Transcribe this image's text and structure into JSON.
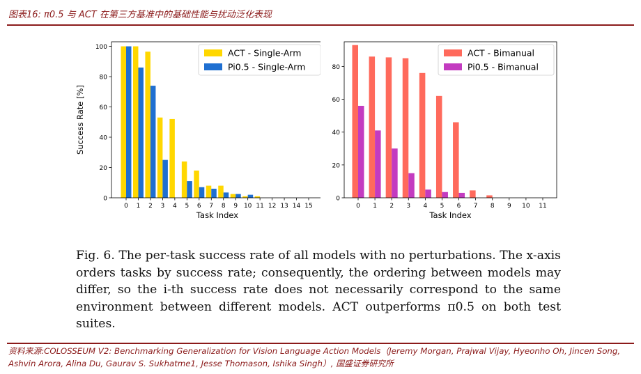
{
  "header": {
    "title": "图表16:  π0.5 与 ACT 在第三方基准中的基础性能与扰动泛化表现"
  },
  "caption": {
    "text": "Fig. 6.  The per-task success rate of all models with no perturbations. The x-axis orders tasks by success rate; consequently, the ordering between models may differ, so the i-th success rate does not necessarily correspond to the same environment between different models. ACT outperforms π0.5 on both test suites."
  },
  "source": {
    "text": "资料来源:COLOSSEUM V2: Benchmarking Generalization for Vision Language Action Models（Jeremy Morgan,   Prajwal Vijay,   Hyeonho Oh, Jincen Song,   Ashvin Arora,   Alina Du,   Gaurav S. Sukhatme1,   Jesse Thomason,   Ishika Singh）, 国盛证券研究所"
  },
  "chart_data": [
    {
      "type": "bar",
      "title": "",
      "xlabel": "Task Index",
      "ylabel": "Success Rate [%]",
      "categories": [
        "0",
        "1",
        "2",
        "3",
        "4",
        "5",
        "6",
        "7",
        "8",
        "9",
        "10",
        "11",
        "12",
        "13",
        "14",
        "15"
      ],
      "ylim": [
        0,
        103
      ],
      "yticks": [
        0,
        20,
        40,
        60,
        80,
        100
      ],
      "legend": "top-right",
      "grid": false,
      "series": [
        {
          "name": "ACT - Single-Arm",
          "color": "#ffd700",
          "values": [
            100,
            100,
            96.5,
            53,
            52,
            24,
            18,
            8,
            8,
            2.5,
            1,
            1,
            0,
            0,
            0,
            0
          ]
        },
        {
          "name": "Pi0.5 - Single-Arm",
          "color": "#1f6fd1",
          "values": [
            100,
            86,
            74,
            25,
            0,
            11,
            7,
            6,
            3.5,
            2.5,
            2,
            0,
            0,
            0,
            0,
            0
          ]
        }
      ]
    },
    {
      "type": "bar",
      "title": "",
      "xlabel": "Task Index",
      "ylabel": "",
      "categories": [
        "0",
        "1",
        "2",
        "3",
        "4",
        "5",
        "6",
        "7",
        "8",
        "9",
        "10",
        "11"
      ],
      "ylim": [
        0,
        95
      ],
      "yticks": [
        0,
        20,
        40,
        60,
        80
      ],
      "legend": "top-right",
      "grid": false,
      "series": [
        {
          "name": "ACT - Bimanual",
          "color": "#ff6a5c",
          "values": [
            93,
            86,
            85.5,
            85,
            76,
            62,
            46,
            4.5,
            1.5,
            0,
            0,
            0
          ]
        },
        {
          "name": "Pi0.5 - Bimanual",
          "color": "#c33bc0",
          "values": [
            56,
            41,
            30,
            15,
            5,
            3.5,
            3,
            0,
            0,
            0,
            0,
            0
          ]
        }
      ]
    }
  ]
}
